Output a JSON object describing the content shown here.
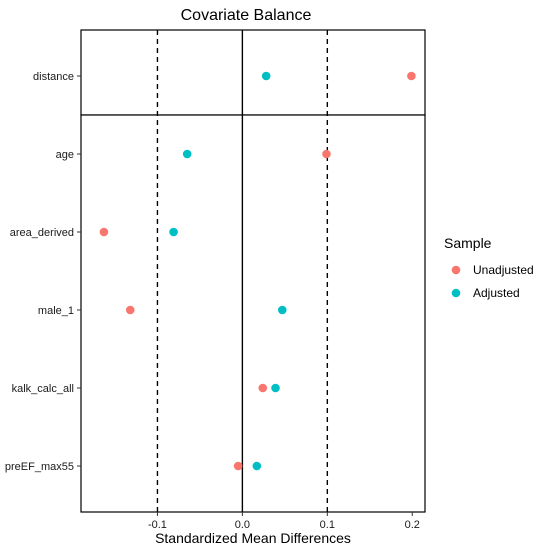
{
  "chart_data": {
    "type": "scatter",
    "title": "Covariate Balance",
    "xlabel": "Standardized Mean Differences",
    "ylabel": "",
    "xlim": [
      -0.19,
      0.215
    ],
    "x_ticks": [
      -0.1,
      0.0,
      0.1,
      0.2
    ],
    "x_tick_labels": [
      "-0.1",
      "0.0",
      "0.1",
      "0.2"
    ],
    "threshold_lines": [
      -0.1,
      0.1
    ],
    "zero_line": 0,
    "grid": false,
    "legend": {
      "title": "Sample",
      "position": "right"
    },
    "categories": [
      "distance",
      "age",
      "area_derived",
      "male_1",
      "kalk_calc_all",
      "preEF_max55"
    ],
    "series": [
      {
        "name": "Unadjusted",
        "color": "#F8766D",
        "values": [
          0.199,
          0.099,
          -0.163,
          -0.132,
          0.024,
          -0.005
        ]
      },
      {
        "name": "Adjusted",
        "color": "#00BFC4",
        "values": [
          0.028,
          -0.065,
          -0.081,
          0.047,
          0.039,
          0.017
        ]
      }
    ]
  }
}
